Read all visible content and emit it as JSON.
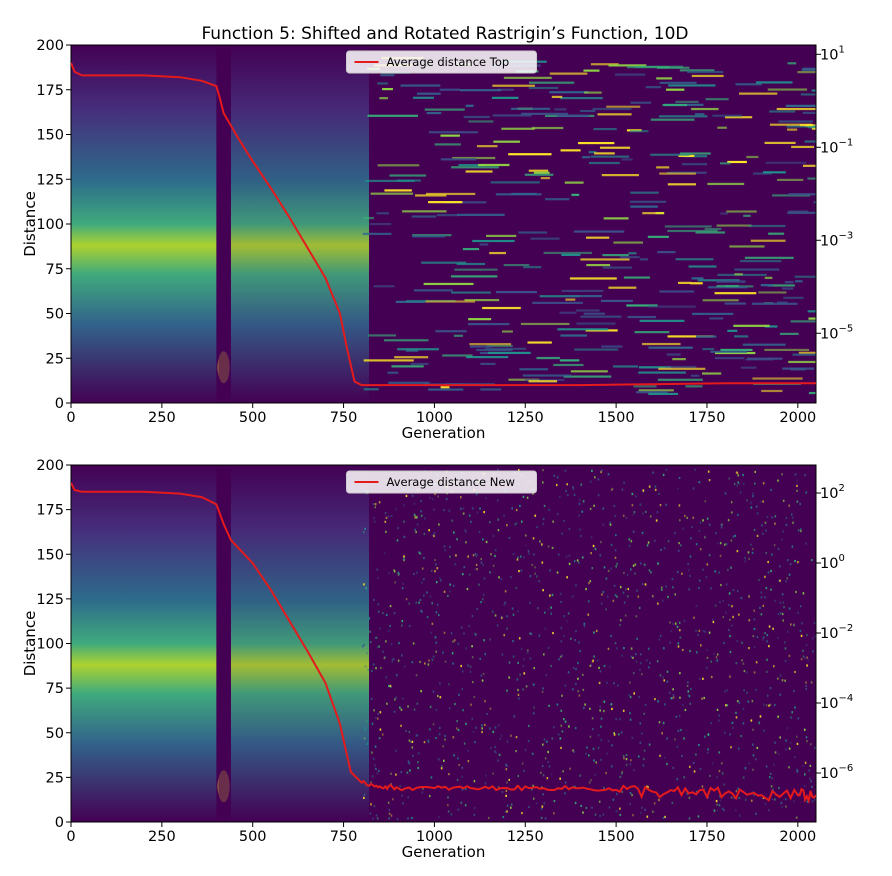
{
  "title": "Function 5: Shifted and Rotated Rastrigin’s Function, 10D",
  "colors": {
    "line": "#e41a1c",
    "cmap_low": "#440154",
    "cmap_mid": "#21918c",
    "cmap_high": "#fde725"
  },
  "chart_data": [
    {
      "type": "heatmap",
      "xlabel": "Generation",
      "ylabel": "Distance",
      "xlim": [
        0,
        2050
      ],
      "ylim": [
        0,
        200
      ],
      "x_ticks": [
        0,
        250,
        500,
        750,
        1000,
        1250,
        1500,
        1750,
        2000
      ],
      "y_ticks": [
        0,
        25,
        50,
        75,
        100,
        125,
        150,
        175,
        200
      ],
      "right_axis": {
        "scale": "log",
        "ticks": [
          {
            "base": "10",
            "exp": "1",
            "value": 10
          },
          {
            "base": "10",
            "exp": "−1",
            "value": 0.1
          },
          {
            "base": "10",
            "exp": "−3",
            "value": 0.001
          },
          {
            "base": "10",
            "exp": "−5",
            "value": 1e-05
          }
        ]
      },
      "legend": {
        "label": "Average distance Top",
        "position": "top-center"
      },
      "series": [
        {
          "name": "Average distance Top",
          "x": [
            0,
            10,
            30,
            100,
            200,
            300,
            360,
            400,
            410,
            420,
            440,
            460,
            500,
            550,
            600,
            650,
            700,
            740,
            760,
            780,
            800,
            900,
            1000,
            1200,
            1400,
            1600,
            1800,
            2050
          ],
          "y": [
            190,
            185,
            183,
            183,
            183,
            182,
            180,
            177,
            170,
            162,
            155,
            148,
            135,
            120,
            104,
            87,
            70,
            50,
            30,
            12,
            10,
            10,
            10,
            10,
            10,
            10.5,
            11,
            11
          ]
        }
      ]
    },
    {
      "type": "heatmap",
      "xlabel": "Generation",
      "ylabel": "Distance",
      "xlim": [
        0,
        2050
      ],
      "ylim": [
        0,
        200
      ],
      "x_ticks": [
        0,
        250,
        500,
        750,
        1000,
        1250,
        1500,
        1750,
        2000
      ],
      "y_ticks": [
        0,
        25,
        50,
        75,
        100,
        125,
        150,
        175,
        200
      ],
      "right_axis": {
        "scale": "log",
        "ticks": [
          {
            "base": "10",
            "exp": "2",
            "value": 100
          },
          {
            "base": "10",
            "exp": "0",
            "value": 1
          },
          {
            "base": "10",
            "exp": "−2",
            "value": 0.01
          },
          {
            "base": "10",
            "exp": "−4",
            "value": 0.0001
          },
          {
            "base": "10",
            "exp": "−6",
            "value": 1e-06
          }
        ]
      },
      "legend": {
        "label": "Average distance New",
        "position": "top-center"
      },
      "series": [
        {
          "name": "Average distance New",
          "x": [
            0,
            10,
            30,
            100,
            200,
            300,
            360,
            400,
            420,
            440,
            500,
            550,
            600,
            650,
            700,
            740,
            770,
            800,
            850,
            900,
            1000,
            1100,
            1200,
            1300,
            1400,
            1500,
            1600,
            1700,
            1800,
            1900,
            2000,
            2050
          ],
          "y": [
            190,
            186,
            185,
            185,
            185,
            184,
            182,
            178,
            167,
            158,
            145,
            130,
            113,
            96,
            78,
            55,
            28,
            22,
            20,
            19,
            19,
            19,
            19,
            19,
            19,
            18,
            17,
            16,
            16,
            15,
            15,
            15
          ]
        }
      ]
    }
  ]
}
